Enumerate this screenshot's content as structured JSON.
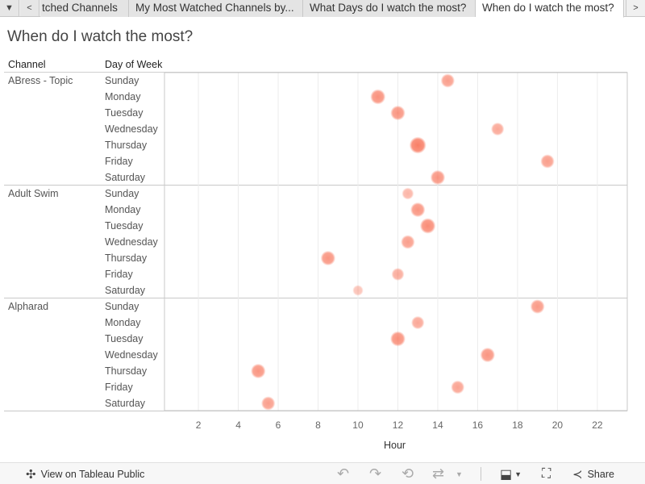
{
  "tabs": [
    {
      "label": "tched Channels"
    },
    {
      "label": "My Most Watched Channels by..."
    },
    {
      "label": "What Days do I watch the most?"
    },
    {
      "label": "When do I watch the most?"
    }
  ],
  "page_title": "When do I watch the most?",
  "headers": {
    "channel": "Channel",
    "day": "Day of Week"
  },
  "channels": [
    {
      "name": "ABress - Topic",
      "days": [
        "Sunday",
        "Monday",
        "Tuesday",
        "Wednesday",
        "Thursday",
        "Friday",
        "Saturday"
      ]
    },
    {
      "name": "Adult Swim",
      "days": [
        "Sunday",
        "Monday",
        "Tuesday",
        "Wednesday",
        "Thursday",
        "Friday",
        "Saturday"
      ]
    },
    {
      "name": "Alpharad",
      "days": [
        "Sunday",
        "Monday",
        "Tuesday",
        "Wednesday",
        "Thursday",
        "Friday",
        "Saturday"
      ]
    }
  ],
  "toolbar": {
    "view_label": "View on Tableau Public",
    "share_label": "Share"
  },
  "colors": {
    "dot": "#f8765c",
    "grid": "#ececec",
    "border": "#c8c8c8"
  },
  "chart_data": {
    "type": "scatter",
    "title": "When do I watch the most?",
    "xlabel": "Hour",
    "ylabel": "Day of Week",
    "xlim": [
      0.3,
      23.5
    ],
    "xticks": [
      2,
      4,
      6,
      8,
      10,
      12,
      14,
      16,
      18,
      20,
      22
    ],
    "series": [
      {
        "name": "ABress - Topic",
        "points": [
          {
            "day": "Sunday",
            "hour": 14.5,
            "opacity": 0.55
          },
          {
            "day": "Monday",
            "hour": 11,
            "opacity": 0.7
          },
          {
            "day": "Tuesday",
            "hour": 12,
            "opacity": 0.65
          },
          {
            "day": "Wednesday",
            "hour": 17,
            "opacity": 0.45
          },
          {
            "day": "Thursday",
            "hour": 13,
            "opacity": 0.9
          },
          {
            "day": "Friday",
            "hour": 19.5,
            "opacity": 0.55
          },
          {
            "day": "Saturday",
            "hour": 14,
            "opacity": 0.65
          }
        ]
      },
      {
        "name": "Adult Swim",
        "points": [
          {
            "day": "Sunday",
            "hour": 12.5,
            "opacity": 0.3
          },
          {
            "day": "Monday",
            "hour": 13,
            "opacity": 0.65
          },
          {
            "day": "Tuesday",
            "hour": 13.5,
            "opacity": 0.75
          },
          {
            "day": "Wednesday",
            "hour": 12.5,
            "opacity": 0.55
          },
          {
            "day": "Thursday",
            "hour": 8.5,
            "opacity": 0.65
          },
          {
            "day": "Friday",
            "hour": 12,
            "opacity": 0.4
          },
          {
            "day": "Saturday",
            "hour": 10,
            "opacity": 0.15
          }
        ]
      },
      {
        "name": "Alpharad",
        "points": [
          {
            "day": "Sunday",
            "hour": 19,
            "opacity": 0.6
          },
          {
            "day": "Monday",
            "hour": 13,
            "opacity": 0.45
          },
          {
            "day": "Tuesday",
            "hour": 12,
            "opacity": 0.7
          },
          {
            "day": "Wednesday",
            "hour": 16.5,
            "opacity": 0.65
          },
          {
            "day": "Thursday",
            "hour": 5,
            "opacity": 0.65
          },
          {
            "day": "Friday",
            "hour": 15,
            "opacity": 0.5
          },
          {
            "day": "Saturday",
            "hour": 5.5,
            "opacity": 0.55
          }
        ]
      }
    ]
  }
}
